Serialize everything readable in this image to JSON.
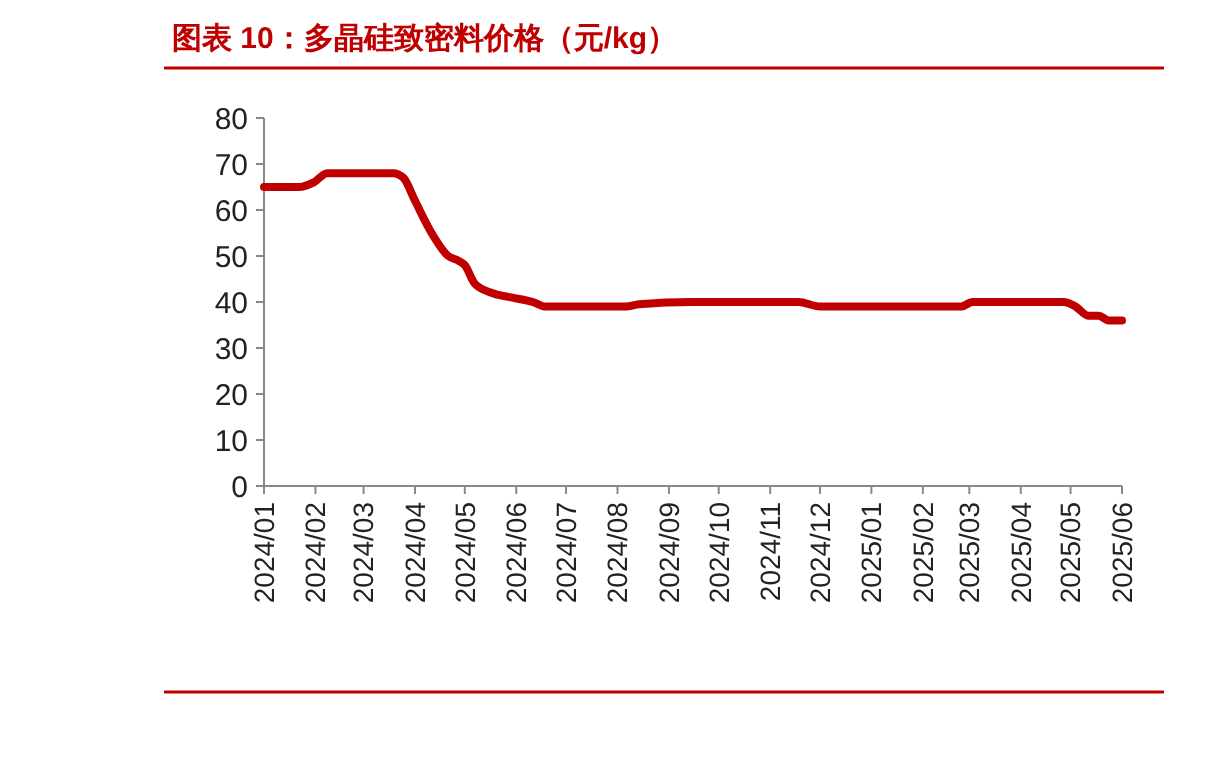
{
  "chart_data": {
    "type": "line",
    "title": "图表 10：多晶硅致密料价格（元/kg）",
    "x": [
      "2024-01-01",
      "2024-01-22",
      "2024-01-31",
      "2024-02-08",
      "2024-03-19",
      "2024-03-25",
      "2024-04-01",
      "2024-04-11",
      "2024-04-21",
      "2024-04-27",
      "2024-05-01",
      "2024-05-07",
      "2024-05-17",
      "2024-05-29",
      "2024-06-11",
      "2024-06-19",
      "2024-08-06",
      "2024-08-14",
      "2024-09-15",
      "2024-11-18",
      "2024-12-01",
      "2025-02-24",
      "2025-03-03",
      "2025-04-27",
      "2025-05-04",
      "2025-05-12",
      "2025-05-18",
      "2025-05-24",
      "2025-06-01"
    ],
    "series": [
      {
        "color": "#c00000",
        "values": [
          65,
          65,
          66,
          68,
          68,
          67,
          62,
          55,
          50,
          49,
          48,
          44,
          42,
          41,
          40,
          39,
          39,
          39.5,
          40,
          40,
          39,
          39,
          40,
          40,
          39,
          37,
          37,
          36,
          36
        ]
      }
    ],
    "xlim": [
      "2024-01-01",
      "2025-06-01"
    ],
    "xticks": [
      {
        "value": "2024-01-01",
        "label": "2024/01"
      },
      {
        "value": "2024-02-01",
        "label": "2024/02"
      },
      {
        "value": "2024-03-01",
        "label": "2024/03"
      },
      {
        "value": "2024-04-01",
        "label": "2024/04"
      },
      {
        "value": "2024-05-01",
        "label": "2024/05"
      },
      {
        "value": "2024-06-01",
        "label": "2024/06"
      },
      {
        "value": "2024-07-01",
        "label": "2024/07"
      },
      {
        "value": "2024-08-01",
        "label": "2024/08"
      },
      {
        "value": "2024-09-01",
        "label": "2024/09"
      },
      {
        "value": "2024-10-01",
        "label": "2024/10"
      },
      {
        "value": "2024-11-01",
        "label": "2024/11"
      },
      {
        "value": "2024-12-01",
        "label": "2024/12"
      },
      {
        "value": "2025-01-01",
        "label": "2025/01"
      },
      {
        "value": "2025-02-01",
        "label": "2025/02"
      },
      {
        "value": "2025-03-01",
        "label": "2025/03"
      },
      {
        "value": "2025-04-01",
        "label": "2025/04"
      },
      {
        "value": "2025-05-01",
        "label": "2025/05"
      },
      {
        "value": "2025-06-01",
        "label": "2025/06"
      }
    ],
    "ylim": [
      0,
      80
    ],
    "yticks": [
      0,
      10,
      20,
      30,
      40,
      50,
      60,
      70,
      80
    ],
    "grid": false,
    "line_style": "solid",
    "marker": "none"
  }
}
